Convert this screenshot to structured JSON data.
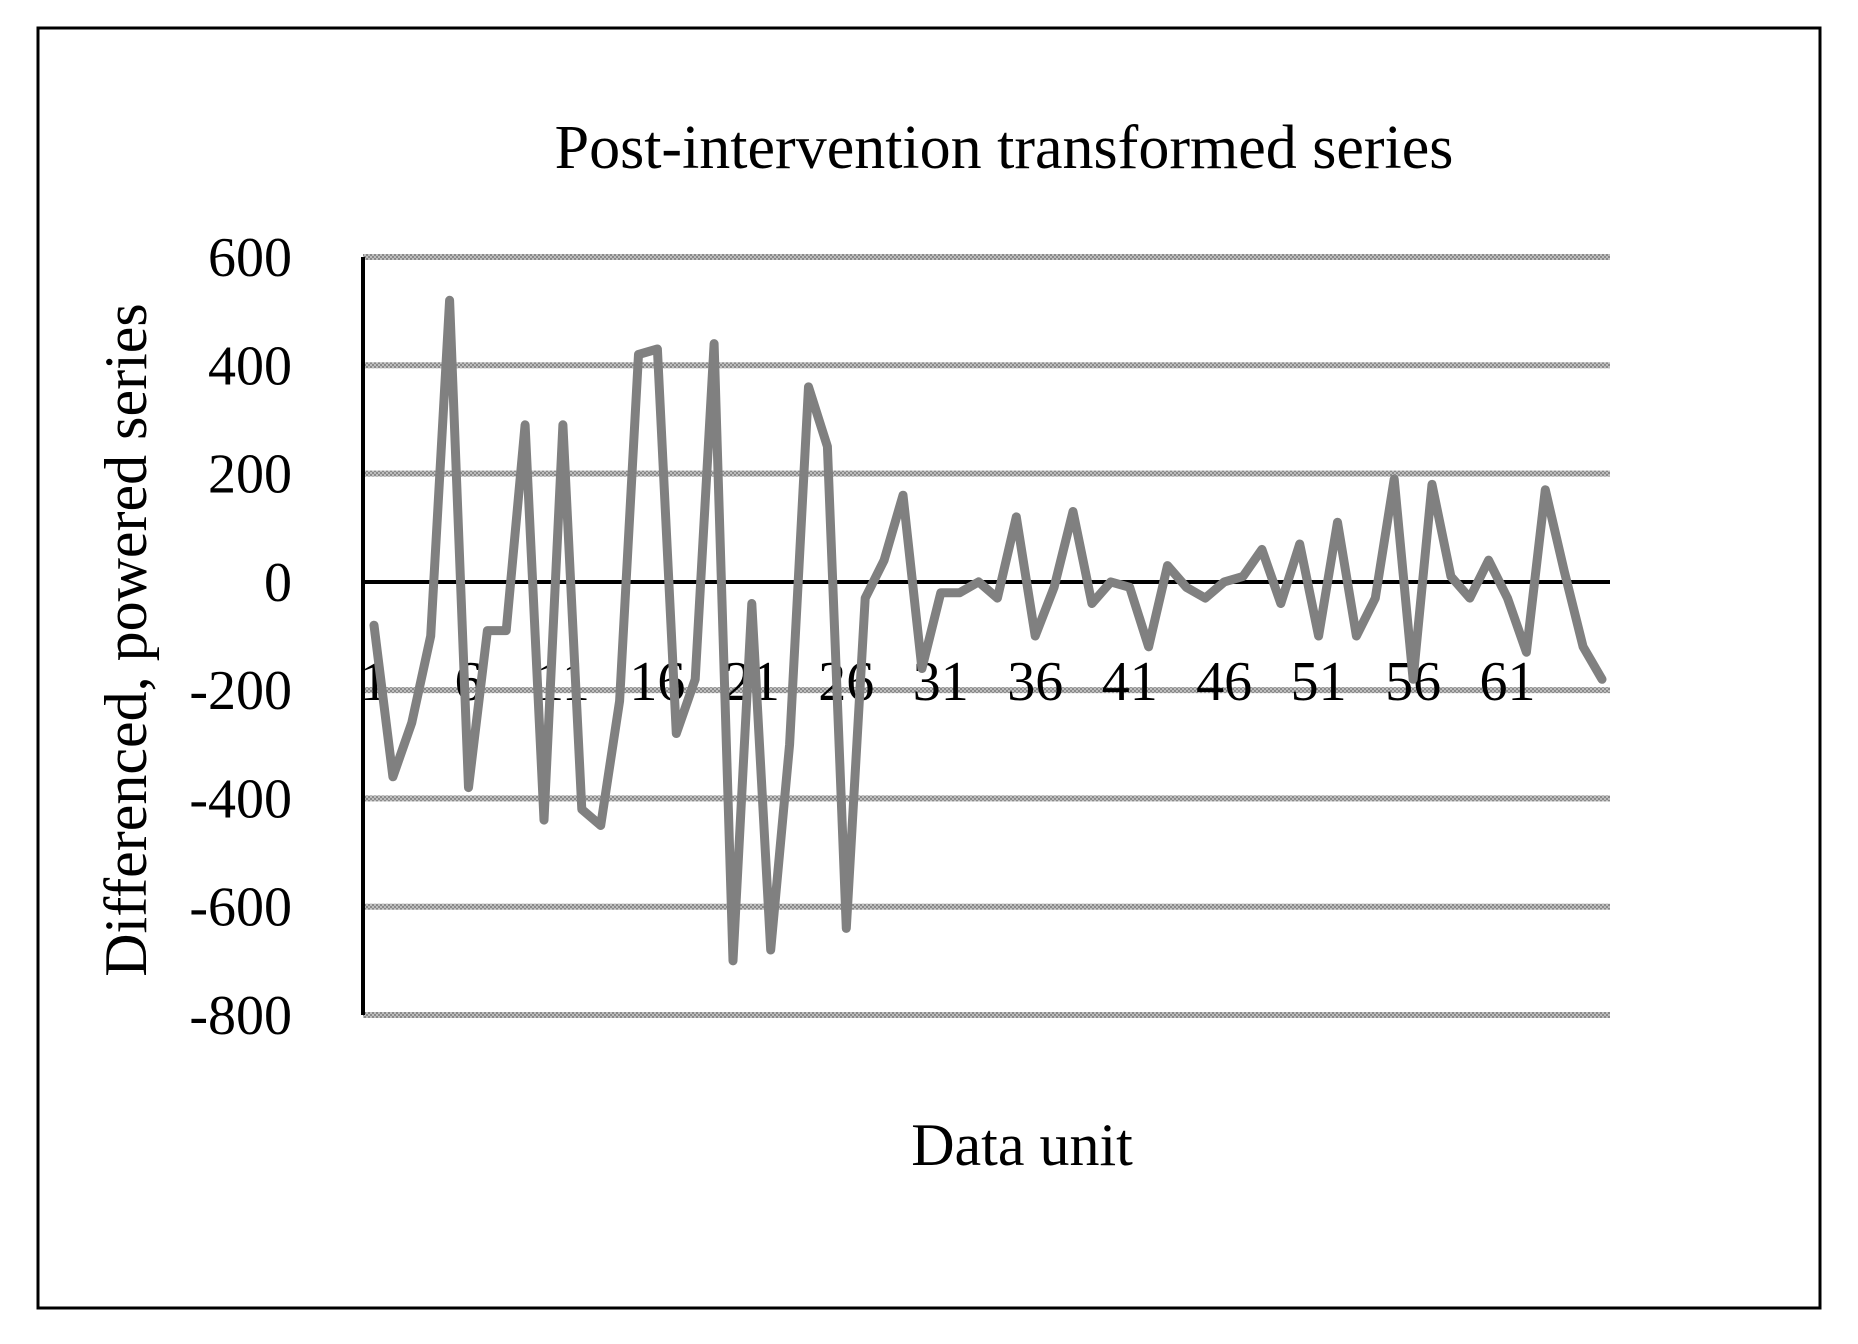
{
  "chart_data": {
    "type": "line",
    "title": "Post-intervention transformed series",
    "xlabel": "Data unit",
    "ylabel": "Differenced, powered series",
    "ylim": [
      -800,
      600
    ],
    "yticks": [
      600,
      400,
      200,
      0,
      -200,
      -400,
      -600,
      -800
    ],
    "ytick_labels": [
      "600",
      "400",
      "200",
      "0",
      "-200",
      "-400",
      "-600",
      "-800"
    ],
    "xtick_labels": [
      "1",
      "6",
      "11",
      "16",
      "21",
      "26",
      "31",
      "36",
      "41",
      "46",
      "51",
      "56",
      "61"
    ],
    "grid": true,
    "legend": "none",
    "line_color": "#808080",
    "x": [
      1,
      2,
      3,
      4,
      5,
      6,
      7,
      8,
      9,
      10,
      11,
      12,
      13,
      14,
      15,
      16,
      17,
      18,
      19,
      20,
      21,
      22,
      23,
      24,
      25,
      26,
      27,
      28,
      29,
      30,
      31,
      32,
      33,
      34,
      35,
      36,
      37,
      38,
      39,
      40,
      41,
      42,
      43,
      44,
      45,
      46,
      47,
      48,
      49,
      50,
      51,
      52,
      53,
      54,
      55,
      56,
      57,
      58,
      59,
      60,
      61,
      62,
      63,
      64,
      65,
      66
    ],
    "series": [
      {
        "values": [
          -80,
          -360,
          -260,
          -100,
          520,
          -380,
          -90,
          -90,
          290,
          -440,
          290,
          -420,
          -450,
          -220,
          420,
          430,
          -280,
          -180,
          440,
          -700,
          -40,
          -680,
          -300,
          360,
          250,
          -640,
          -30,
          40,
          160,
          -160,
          -20,
          -20,
          0,
          -30,
          120,
          -100,
          -10,
          130,
          -40,
          0,
          -10,
          -120,
          30,
          -10,
          -30,
          0,
          10,
          60,
          -40,
          70,
          -100,
          110,
          -100,
          -30,
          190,
          -180,
          180,
          10,
          -30,
          40,
          -30,
          -130,
          170,
          20,
          -120,
          -180
        ]
      }
    ]
  }
}
